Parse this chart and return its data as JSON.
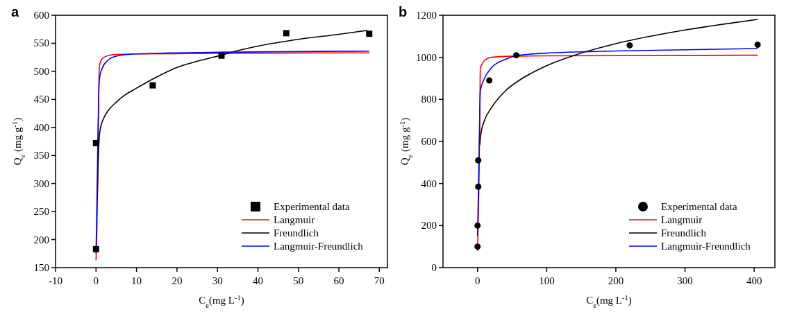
{
  "chart_data": [
    {
      "type": "line",
      "title": "a",
      "xlabel": "C$_{e}$(mg L$^{-1}$)",
      "ylabel": "Q$_{e}$ (mg g$^{-1}$)",
      "xlim": [
        -10,
        72
      ],
      "xticks": [
        -10,
        0,
        10,
        20,
        30,
        40,
        50,
        60,
        70
      ],
      "ylim": [
        150,
        600
      ],
      "yticks": [
        150,
        200,
        250,
        300,
        350,
        400,
        450,
        500,
        550,
        600
      ],
      "legend": "bottom right",
      "series": [
        {
          "name": "Experimental data",
          "type": "scatter",
          "marker": "square",
          "color": "#000000",
          "x": [
            0,
            0,
            14,
            31,
            47,
            67.5
          ],
          "values": [
            183,
            372,
            475,
            528,
            568,
            567
          ]
        },
        {
          "name": "Langmuir",
          "color": "#ff0000",
          "x": [
            0,
            0.3,
            0.6,
            0.8,
            1,
            1.5,
            2,
            3,
            5,
            10,
            30,
            67.5
          ],
          "values": [
            163,
            250,
            420,
            505,
            515,
            522,
            525,
            528,
            530,
            531,
            532,
            533
          ]
        },
        {
          "name": "Freundlich",
          "color": "#000000",
          "x": [
            0.3,
            0.5,
            0.7,
            1,
            2,
            3,
            5,
            7,
            10,
            15,
            20,
            25,
            30,
            35,
            40,
            50,
            60,
            67
          ],
          "values": [
            270,
            330,
            370,
            395,
            418,
            430,
            445,
            457,
            470,
            490,
            507,
            518,
            527,
            537,
            545,
            557,
            566,
            573
          ]
        },
        {
          "name": "Langmuir-Freundlich",
          "color": "#0000ff",
          "x": [
            0,
            0.3,
            0.5,
            0.7,
            0.9,
            1.5,
            3,
            5,
            10,
            30,
            67.5
          ],
          "values": [
            175,
            300,
            400,
            470,
            490,
            505,
            520,
            527,
            531,
            534,
            536
          ]
        }
      ]
    },
    {
      "type": "line",
      "title": "b",
      "xlabel": "C$_{e}$(mg L$^{-1}$)",
      "ylabel": "Q$_{e}$ (mg g$^{-1}$)",
      "xlim": [
        -50,
        430
      ],
      "xticks": [
        0,
        100,
        200,
        300,
        400
      ],
      "ylim": [
        0,
        1200
      ],
      "yticks": [
        0,
        200,
        400,
        600,
        800,
        1000,
        1200
      ],
      "legend": "bottom right",
      "series": [
        {
          "name": "Experimental data",
          "type": "scatter",
          "marker": "circle",
          "color": "#000000",
          "x": [
            0,
            0,
            1,
            1,
            17,
            56,
            220,
            405
          ],
          "values": [
            100,
            200,
            385,
            510,
            890,
            1010,
            1057,
            1060
          ]
        },
        {
          "name": "Langmuir",
          "color": "#ff0000",
          "x": [
            0,
            2,
            3,
            4,
            6,
            10,
            20,
            50,
            100,
            405
          ],
          "values": [
            80,
            400,
            650,
            950,
            965,
            985,
            1000,
            1005,
            1007,
            1010
          ]
        },
        {
          "name": "Freundlich",
          "color": "#000000",
          "x": [
            3,
            5,
            10,
            20,
            40,
            60,
            100,
            150,
            200,
            250,
            300,
            350,
            405
          ],
          "values": [
            580,
            640,
            700,
            760,
            840,
            890,
            960,
            1020,
            1065,
            1100,
            1130,
            1155,
            1180
          ]
        },
        {
          "name": "Langmuir-Freundlich",
          "color": "#0000ff",
          "x": [
            0,
            2,
            4,
            10,
            20,
            40,
            60,
            100,
            200,
            405
          ],
          "values": [
            150,
            500,
            840,
            900,
            950,
            990,
            1010,
            1020,
            1030,
            1042
          ]
        }
      ]
    }
  ]
}
